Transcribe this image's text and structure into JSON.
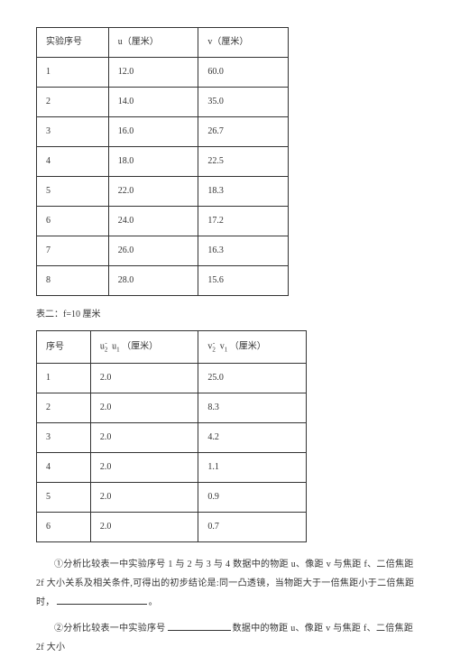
{
  "table1": {
    "headers": {
      "col1": "实验序号",
      "col2": "u（厘米）",
      "col3": "v（厘米）"
    },
    "rows": [
      {
        "n": "1",
        "u": "12.0",
        "v": "60.0"
      },
      {
        "n": "2",
        "u": "14.0",
        "v": "35.0"
      },
      {
        "n": "3",
        "u": "16.0",
        "v": "26.7"
      },
      {
        "n": "4",
        "u": "18.0",
        "v": "22.5"
      },
      {
        "n": "5",
        "u": "22.0",
        "v": "18.3"
      },
      {
        "n": "6",
        "u": "24.0",
        "v": "17.2"
      },
      {
        "n": "7",
        "u": "26.0",
        "v": "16.3"
      },
      {
        "n": "8",
        "u": "28.0",
        "v": "15.6"
      }
    ],
    "border_color": "#333333"
  },
  "caption2": "表二：f=10 厘米",
  "table2": {
    "headers": {
      "col1": "序号",
      "col2_pre": "u",
      "col2_sub": "2",
      "col2_sup": "-",
      "col2_mid": " u",
      "col2_sub2": "1",
      "col2_suf": " （厘米）",
      "col3_pre": "v",
      "col3_sub": "2",
      "col3_sup": "-",
      "col3_mid": " v",
      "col3_sub2": "1",
      "col3_suf": " （厘米）"
    },
    "rows": [
      {
        "n": "1",
        "du": "2.0",
        "dv": "25.0"
      },
      {
        "n": "2",
        "du": "2.0",
        "dv": "8.3"
      },
      {
        "n": "3",
        "du": "2.0",
        "dv": "4.2"
      },
      {
        "n": "4",
        "du": "2.0",
        "dv": "1.1"
      },
      {
        "n": "5",
        "du": "2.0",
        "dv": "0.9"
      },
      {
        "n": "6",
        "du": "2.0",
        "dv": "0.7"
      }
    ],
    "border_color": "#333333"
  },
  "para1_a": "①分析比较表一中实验序号 1 与 2 与 3 与 4 数据中的物距 u、像距 v 与焦距 f、二倍焦距 2f 大小关系及相关条件,可得出的初步结论是:同一凸透镜，当物距大于一倍焦距小于二倍焦距时，",
  "para1_b": "。",
  "para2_a": "②分析比较表一中实验序号",
  "para2_b": "数据中的物距 u、像距 v 与焦距 f、二倍焦距 2f 大小",
  "colors": {
    "text": "#333333",
    "bg": "#ffffff"
  },
  "typography": {
    "base_fontsize_pt": 10,
    "family": "SimSun"
  }
}
